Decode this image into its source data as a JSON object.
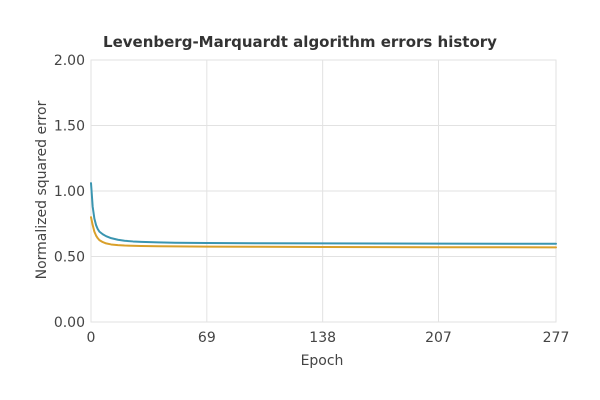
{
  "chart_data": {
    "type": "line",
    "title": "Levenberg-Marquardt algorithm errors history",
    "xlabel": "Epoch",
    "ylabel": "Normalized squared error",
    "xlim": [
      0,
      277
    ],
    "ylim": [
      0,
      2
    ],
    "x_ticks": [
      "0",
      "69",
      "138",
      "207",
      "277"
    ],
    "y_ticks": [
      "0.00",
      "0.50",
      "1.00",
      "1.50",
      "2.00"
    ],
    "grid": true,
    "legend": "none",
    "colors": [
      "#3a95b0",
      "#d9a02a"
    ],
    "series": [
      {
        "points": [
          [
            0,
            1.06
          ],
          [
            1,
            0.88
          ],
          [
            2,
            0.79
          ],
          [
            3,
            0.74
          ],
          [
            4,
            0.71
          ],
          [
            5,
            0.69
          ],
          [
            7,
            0.67
          ],
          [
            9,
            0.655
          ],
          [
            12,
            0.64
          ],
          [
            16,
            0.628
          ],
          [
            20,
            0.62
          ],
          [
            25,
            0.615
          ],
          [
            30,
            0.612
          ],
          [
            40,
            0.608
          ],
          [
            50,
            0.605
          ],
          [
            69,
            0.603
          ],
          [
            100,
            0.601
          ],
          [
            138,
            0.6
          ],
          [
            207,
            0.598
          ],
          [
            277,
            0.597
          ]
        ]
      },
      {
        "points": [
          [
            0,
            0.8
          ],
          [
            1,
            0.74
          ],
          [
            2,
            0.69
          ],
          [
            3,
            0.66
          ],
          [
            4,
            0.64
          ],
          [
            5,
            0.625
          ],
          [
            7,
            0.61
          ],
          [
            9,
            0.6
          ],
          [
            12,
            0.592
          ],
          [
            16,
            0.587
          ],
          [
            20,
            0.584
          ],
          [
            30,
            0.58
          ],
          [
            40,
            0.578
          ],
          [
            50,
            0.577
          ],
          [
            69,
            0.575
          ],
          [
            100,
            0.574
          ],
          [
            138,
            0.573
          ],
          [
            207,
            0.571
          ],
          [
            277,
            0.57
          ]
        ]
      }
    ]
  }
}
